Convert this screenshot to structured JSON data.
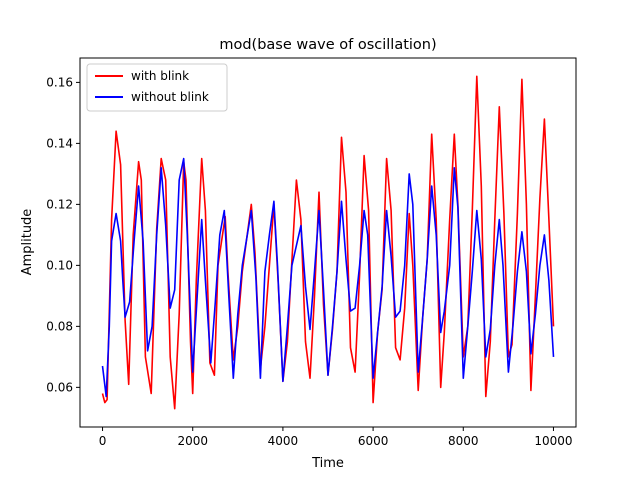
{
  "chart_data": {
    "type": "line",
    "title": "mod(base wave of oscillation)",
    "xlabel": "Time",
    "ylabel": "Amplitude",
    "xlim": [
      -500,
      10500
    ],
    "ylim": [
      0.047,
      0.168
    ],
    "xticks": [
      0,
      2000,
      4000,
      6000,
      8000,
      10000
    ],
    "yticks": [
      0.06,
      0.08,
      0.1,
      0.12,
      0.14,
      0.16
    ],
    "ytick_labels": [
      "0.06",
      "0.08",
      "0.10",
      "0.12",
      "0.14",
      "0.16"
    ],
    "grid": false,
    "legend_position": "top-left",
    "series": [
      {
        "name": "with blink",
        "color": "#ff0000",
        "points": [
          [
            0,
            0.058
          ],
          [
            50,
            0.055
          ],
          [
            100,
            0.056
          ],
          [
            200,
            0.115
          ],
          [
            300,
            0.144
          ],
          [
            400,
            0.133
          ],
          [
            500,
            0.082
          ],
          [
            580,
            0.061
          ],
          [
            680,
            0.11
          ],
          [
            800,
            0.134
          ],
          [
            860,
            0.128
          ],
          [
            950,
            0.07
          ],
          [
            1080,
            0.058
          ],
          [
            1200,
            0.112
          ],
          [
            1300,
            0.135
          ],
          [
            1400,
            0.128
          ],
          [
            1500,
            0.07
          ],
          [
            1600,
            0.053
          ],
          [
            1700,
            0.084
          ],
          [
            1800,
            0.134
          ],
          [
            1850,
            0.128
          ],
          [
            1950,
            0.075
          ],
          [
            2000,
            0.058
          ],
          [
            2080,
            0.095
          ],
          [
            2200,
            0.135
          ],
          [
            2280,
            0.118
          ],
          [
            2380,
            0.068
          ],
          [
            2480,
            0.064
          ],
          [
            2560,
            0.1
          ],
          [
            2720,
            0.116
          ],
          [
            2780,
            0.098
          ],
          [
            2900,
            0.069
          ],
          [
            3000,
            0.08
          ],
          [
            3100,
            0.098
          ],
          [
            3300,
            0.12
          ],
          [
            3380,
            0.104
          ],
          [
            3500,
            0.066
          ],
          [
            3600,
            0.08
          ],
          [
            3700,
            0.1
          ],
          [
            3800,
            0.12
          ],
          [
            3900,
            0.093
          ],
          [
            4000,
            0.062
          ],
          [
            4100,
            0.075
          ],
          [
            4300,
            0.128
          ],
          [
            4400,
            0.115
          ],
          [
            4500,
            0.075
          ],
          [
            4600,
            0.063
          ],
          [
            4700,
            0.09
          ],
          [
            4800,
            0.124
          ],
          [
            4900,
            0.087
          ],
          [
            5000,
            0.064
          ],
          [
            5100,
            0.079
          ],
          [
            5200,
            0.098
          ],
          [
            5300,
            0.142
          ],
          [
            5400,
            0.124
          ],
          [
            5500,
            0.073
          ],
          [
            5600,
            0.065
          ],
          [
            5700,
            0.097
          ],
          [
            5800,
            0.136
          ],
          [
            5900,
            0.118
          ],
          [
            6000,
            0.055
          ],
          [
            6100,
            0.078
          ],
          [
            6200,
            0.092
          ],
          [
            6300,
            0.135
          ],
          [
            6400,
            0.118
          ],
          [
            6500,
            0.073
          ],
          [
            6600,
            0.069
          ],
          [
            6700,
            0.086
          ],
          [
            6800,
            0.117
          ],
          [
            6880,
            0.1
          ],
          [
            7000,
            0.059
          ],
          [
            7100,
            0.083
          ],
          [
            7200,
            0.102
          ],
          [
            7300,
            0.143
          ],
          [
            7400,
            0.115
          ],
          [
            7500,
            0.06
          ],
          [
            7580,
            0.078
          ],
          [
            7700,
            0.115
          ],
          [
            7800,
            0.143
          ],
          [
            7880,
            0.12
          ],
          [
            8000,
            0.07
          ],
          [
            8100,
            0.08
          ],
          [
            8200,
            0.118
          ],
          [
            8300,
            0.162
          ],
          [
            8400,
            0.126
          ],
          [
            8500,
            0.057
          ],
          [
            8600,
            0.075
          ],
          [
            8700,
            0.115
          ],
          [
            8800,
            0.152
          ],
          [
            8900,
            0.117
          ],
          [
            9000,
            0.07
          ],
          [
            9080,
            0.074
          ],
          [
            9200,
            0.117
          ],
          [
            9300,
            0.161
          ],
          [
            9400,
            0.12
          ],
          [
            9500,
            0.059
          ],
          [
            9600,
            0.09
          ],
          [
            9700,
            0.122
          ],
          [
            9800,
            0.148
          ],
          [
            9900,
            0.115
          ],
          [
            10000,
            0.08
          ]
        ]
      },
      {
        "name": "without blink",
        "color": "#0000ff",
        "points": [
          [
            0,
            0.067
          ],
          [
            80,
            0.057
          ],
          [
            150,
            0.08
          ],
          [
            200,
            0.108
          ],
          [
            300,
            0.117
          ],
          [
            400,
            0.108
          ],
          [
            450,
            0.095
          ],
          [
            500,
            0.083
          ],
          [
            600,
            0.088
          ],
          [
            700,
            0.108
          ],
          [
            800,
            0.126
          ],
          [
            900,
            0.108
          ],
          [
            1000,
            0.072
          ],
          [
            1100,
            0.08
          ],
          [
            1200,
            0.11
          ],
          [
            1300,
            0.132
          ],
          [
            1400,
            0.113
          ],
          [
            1500,
            0.086
          ],
          [
            1600,
            0.092
          ],
          [
            1700,
            0.128
          ],
          [
            1800,
            0.135
          ],
          [
            1880,
            0.11
          ],
          [
            2000,
            0.065
          ],
          [
            2100,
            0.09
          ],
          [
            2200,
            0.115
          ],
          [
            2280,
            0.095
          ],
          [
            2400,
            0.068
          ],
          [
            2500,
            0.088
          ],
          [
            2600,
            0.11
          ],
          [
            2700,
            0.118
          ],
          [
            2800,
            0.09
          ],
          [
            2900,
            0.063
          ],
          [
            3000,
            0.084
          ],
          [
            3100,
            0.1
          ],
          [
            3300,
            0.118
          ],
          [
            3400,
            0.096
          ],
          [
            3500,
            0.063
          ],
          [
            3600,
            0.098
          ],
          [
            3700,
            0.11
          ],
          [
            3800,
            0.121
          ],
          [
            3880,
            0.1
          ],
          [
            4000,
            0.062
          ],
          [
            4100,
            0.08
          ],
          [
            4200,
            0.1
          ],
          [
            4400,
            0.113
          ],
          [
            4500,
            0.093
          ],
          [
            4600,
            0.079
          ],
          [
            4700,
            0.098
          ],
          [
            4800,
            0.118
          ],
          [
            4900,
            0.092
          ],
          [
            5000,
            0.064
          ],
          [
            5100,
            0.08
          ],
          [
            5200,
            0.098
          ],
          [
            5300,
            0.121
          ],
          [
            5400,
            0.102
          ],
          [
            5500,
            0.085
          ],
          [
            5600,
            0.086
          ],
          [
            5700,
            0.1
          ],
          [
            5800,
            0.118
          ],
          [
            5880,
            0.11
          ],
          [
            6000,
            0.063
          ],
          [
            6100,
            0.078
          ],
          [
            6200,
            0.093
          ],
          [
            6300,
            0.118
          ],
          [
            6400,
            0.103
          ],
          [
            6500,
            0.083
          ],
          [
            6600,
            0.085
          ],
          [
            6700,
            0.1
          ],
          [
            6800,
            0.13
          ],
          [
            6880,
            0.12
          ],
          [
            7000,
            0.065
          ],
          [
            7100,
            0.083
          ],
          [
            7200,
            0.102
          ],
          [
            7300,
            0.126
          ],
          [
            7400,
            0.11
          ],
          [
            7500,
            0.078
          ],
          [
            7580,
            0.085
          ],
          [
            7700,
            0.1
          ],
          [
            7800,
            0.132
          ],
          [
            7880,
            0.119
          ],
          [
            8000,
            0.063
          ],
          [
            8100,
            0.08
          ],
          [
            8200,
            0.098
          ],
          [
            8300,
            0.118
          ],
          [
            8400,
            0.102
          ],
          [
            8500,
            0.07
          ],
          [
            8600,
            0.079
          ],
          [
            8700,
            0.1
          ],
          [
            8800,
            0.115
          ],
          [
            8880,
            0.1
          ],
          [
            9000,
            0.065
          ],
          [
            9100,
            0.08
          ],
          [
            9200,
            0.098
          ],
          [
            9300,
            0.111
          ],
          [
            9400,
            0.098
          ],
          [
            9500,
            0.071
          ],
          [
            9600,
            0.084
          ],
          [
            9700,
            0.1
          ],
          [
            9800,
            0.11
          ],
          [
            9900,
            0.095
          ],
          [
            10000,
            0.07
          ]
        ]
      }
    ]
  }
}
